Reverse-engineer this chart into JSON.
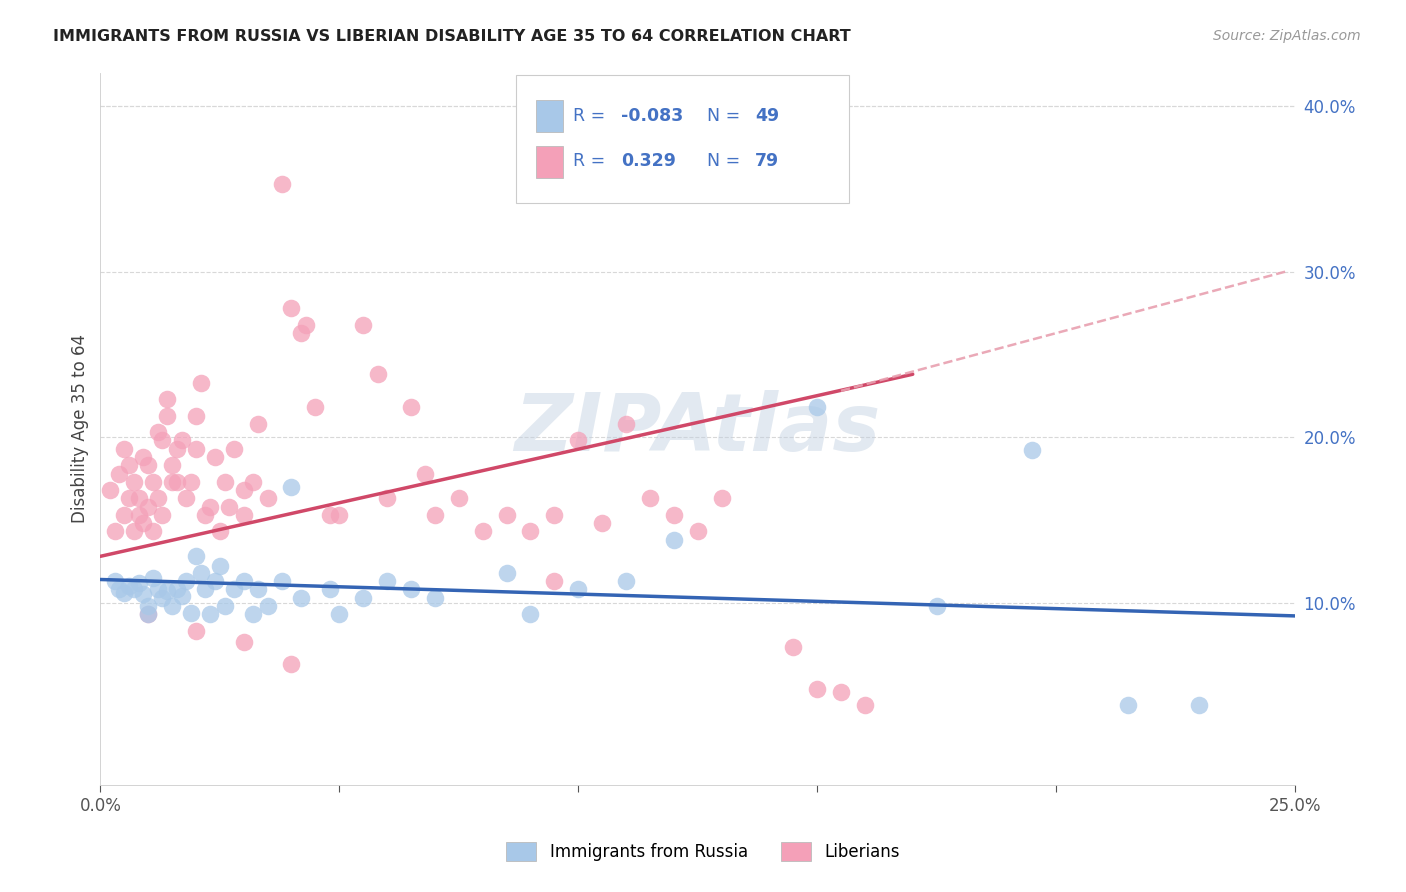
{
  "title": "IMMIGRANTS FROM RUSSIA VS LIBERIAN DISABILITY AGE 35 TO 64 CORRELATION CHART",
  "source": "Source: ZipAtlas.com",
  "ylabel": "Disability Age 35 to 64",
  "xlim": [
    0.0,
    0.25
  ],
  "ylim": [
    -0.01,
    0.42
  ],
  "xticks": [
    0.0,
    0.05,
    0.1,
    0.15,
    0.2,
    0.25
  ],
  "xticklabels": [
    "0.0%",
    "",
    "",
    "",
    "",
    "25.0%"
  ],
  "yticks_right": [
    0.1,
    0.2,
    0.3,
    0.4
  ],
  "yticklabels_right": [
    "10.0%",
    "20.0%",
    "30.0%",
    "40.0%"
  ],
  "legend_labels": [
    "Immigrants from Russia",
    "Liberians"
  ],
  "r_russia": -0.083,
  "n_russia": 49,
  "r_liberian": 0.329,
  "n_liberian": 79,
  "watermark": "ZIPAtlas",
  "russia_color": "#a8c8e8",
  "liberian_color": "#f4a0b8",
  "russia_line_color": "#3464b4",
  "liberian_line_color": "#d04868",
  "dashed_line_color": "#e8a0b0",
  "grid_color": "#d8d8d8",
  "text_color": "#4472c4",
  "title_color": "#222222",
  "russia_line_x": [
    0.0,
    0.25
  ],
  "russia_line_y": [
    0.114,
    0.092
  ],
  "liberian_line_x": [
    0.0,
    0.17
  ],
  "liberian_line_y": [
    0.128,
    0.238
  ],
  "dashed_line_x": [
    0.155,
    0.248
  ],
  "dashed_line_y": [
    0.228,
    0.3
  ],
  "russia_x": [
    0.003,
    0.004,
    0.005,
    0.006,
    0.007,
    0.008,
    0.009,
    0.01,
    0.01,
    0.011,
    0.012,
    0.013,
    0.014,
    0.015,
    0.016,
    0.017,
    0.018,
    0.019,
    0.02,
    0.021,
    0.022,
    0.023,
    0.024,
    0.025,
    0.026,
    0.028,
    0.03,
    0.032,
    0.033,
    0.035,
    0.038,
    0.04,
    0.042,
    0.048,
    0.05,
    0.055,
    0.06,
    0.065,
    0.07,
    0.085,
    0.09,
    0.1,
    0.11,
    0.12,
    0.15,
    0.175,
    0.195,
    0.215,
    0.23
  ],
  "russia_y": [
    0.113,
    0.108,
    0.106,
    0.11,
    0.108,
    0.112,
    0.105,
    0.098,
    0.093,
    0.115,
    0.108,
    0.103,
    0.107,
    0.098,
    0.108,
    0.104,
    0.113,
    0.094,
    0.128,
    0.118,
    0.108,
    0.093,
    0.113,
    0.122,
    0.098,
    0.108,
    0.113,
    0.093,
    0.108,
    0.098,
    0.113,
    0.17,
    0.103,
    0.108,
    0.093,
    0.103,
    0.113,
    0.108,
    0.103,
    0.118,
    0.093,
    0.108,
    0.113,
    0.138,
    0.218,
    0.098,
    0.192,
    0.038,
    0.038
  ],
  "liberian_x": [
    0.002,
    0.003,
    0.004,
    0.005,
    0.005,
    0.006,
    0.006,
    0.007,
    0.007,
    0.008,
    0.008,
    0.009,
    0.009,
    0.01,
    0.01,
    0.011,
    0.011,
    0.012,
    0.012,
    0.013,
    0.013,
    0.014,
    0.014,
    0.015,
    0.015,
    0.016,
    0.016,
    0.017,
    0.018,
    0.019,
    0.02,
    0.02,
    0.021,
    0.022,
    0.023,
    0.024,
    0.025,
    0.026,
    0.027,
    0.028,
    0.03,
    0.03,
    0.032,
    0.033,
    0.035,
    0.038,
    0.04,
    0.042,
    0.043,
    0.045,
    0.048,
    0.05,
    0.055,
    0.058,
    0.06,
    0.065,
    0.068,
    0.07,
    0.075,
    0.08,
    0.085,
    0.09,
    0.095,
    0.095,
    0.1,
    0.105,
    0.11,
    0.115,
    0.12,
    0.125,
    0.13,
    0.01,
    0.02,
    0.03,
    0.04,
    0.145,
    0.15,
    0.155,
    0.16
  ],
  "liberian_y": [
    0.168,
    0.143,
    0.178,
    0.153,
    0.193,
    0.163,
    0.183,
    0.173,
    0.143,
    0.153,
    0.163,
    0.188,
    0.148,
    0.158,
    0.183,
    0.173,
    0.143,
    0.163,
    0.203,
    0.153,
    0.198,
    0.223,
    0.213,
    0.173,
    0.183,
    0.193,
    0.173,
    0.198,
    0.163,
    0.173,
    0.213,
    0.193,
    0.233,
    0.153,
    0.158,
    0.188,
    0.143,
    0.173,
    0.158,
    0.193,
    0.153,
    0.168,
    0.173,
    0.208,
    0.163,
    0.353,
    0.278,
    0.263,
    0.268,
    0.218,
    0.153,
    0.153,
    0.268,
    0.238,
    0.163,
    0.218,
    0.178,
    0.153,
    0.163,
    0.143,
    0.153,
    0.143,
    0.113,
    0.153,
    0.198,
    0.148,
    0.208,
    0.163,
    0.153,
    0.143,
    0.163,
    0.093,
    0.083,
    0.076,
    0.063,
    0.073,
    0.048,
    0.046,
    0.038
  ]
}
